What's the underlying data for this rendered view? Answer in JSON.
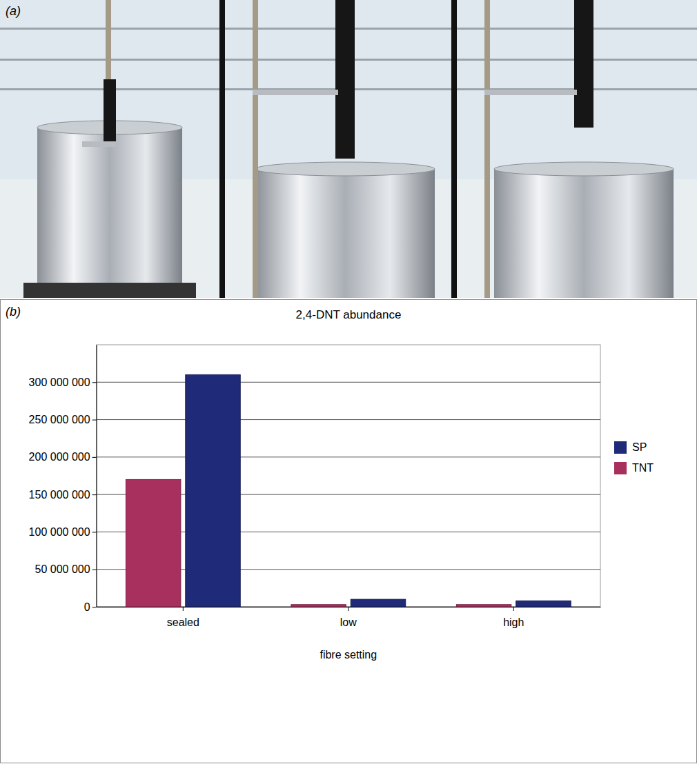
{
  "panels": {
    "a": {
      "label": "(a)"
    },
    "b": {
      "label": "(b)"
    }
  },
  "chart_data": {
    "type": "bar",
    "title": "2,4-DNT abundance",
    "x_label": "fibre setting",
    "categories": [
      "sealed",
      "low",
      "high"
    ],
    "series": [
      {
        "name": "TNT",
        "color": "#a8305f",
        "values": [
          170000000,
          3000000,
          3000000
        ]
      },
      {
        "name": "SP",
        "color": "#1f2a78",
        "values": [
          310000000,
          10000000,
          8000000
        ]
      }
    ],
    "ylim": [
      0,
      350000000
    ],
    "yticks": [
      0,
      {
        "value": 50000000,
        "label": "50 000 000"
      },
      {
        "value": 100000000,
        "label": "100 000 000"
      },
      {
        "value": 150000000,
        "label": "150 000 000"
      },
      {
        "value": 200000000,
        "label": "200 000 000"
      },
      {
        "value": 250000000,
        "label": "250 000 000"
      },
      {
        "value": 300000000,
        "label": "300 000 000"
      }
    ],
    "grid": true,
    "legend": "right"
  }
}
